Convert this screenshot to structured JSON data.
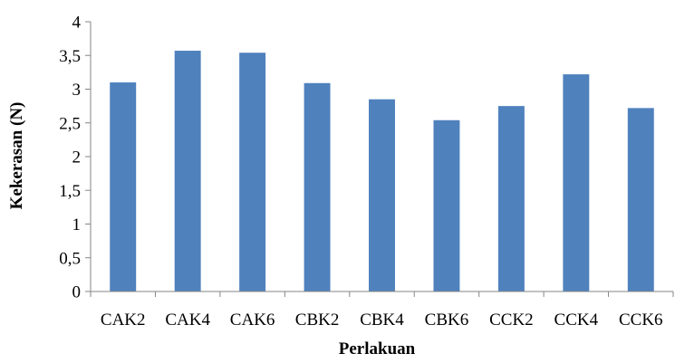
{
  "chart_data": {
    "type": "bar",
    "title": "",
    "xlabel": "Perlakuan",
    "ylabel": "Kekerasan (N)",
    "categories": [
      "CAK2",
      "CAK4",
      "CAK6",
      "CBK2",
      "CBK4",
      "CBK6",
      "CCK2",
      "CCK4",
      "CCK6"
    ],
    "values": [
      3.1,
      3.57,
      3.54,
      3.09,
      2.85,
      2.54,
      2.75,
      3.22,
      2.72
    ],
    "ylim": [
      0,
      4
    ],
    "yticks": [
      "0",
      "0,5",
      "1",
      "1,5",
      "2",
      "2,5",
      "3",
      "3,5",
      "4"
    ],
    "grid": false,
    "legend": "none",
    "colors": {
      "bar": "#4F81BD",
      "axis": "#868686"
    }
  }
}
